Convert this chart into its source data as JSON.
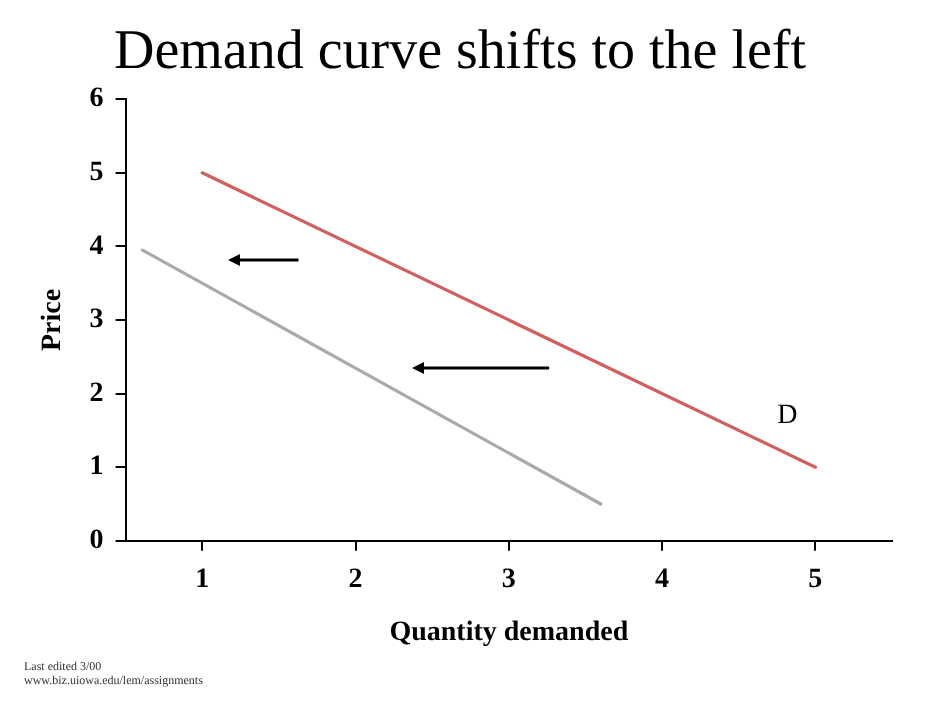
{
  "chart_data": {
    "type": "line",
    "title": "Demand curve shifts to the left",
    "xlabel": "Quantity demanded",
    "ylabel": "Price",
    "xlim": [
      0.5,
      5.5
    ],
    "xticks": [
      1,
      2,
      3,
      4,
      5
    ],
    "ylim": [
      0,
      6
    ],
    "yticks": [
      0,
      1,
      2,
      3,
      4,
      5,
      6
    ],
    "series": [
      {
        "name": "D",
        "color": "#d06060",
        "x": [
          1,
          5
        ],
        "values": [
          5,
          1
        ]
      },
      {
        "color": "#aaaaaa",
        "x": [
          0.61,
          3.6
        ],
        "values": [
          3.95,
          0.5
        ]
      }
    ],
    "annotations": [
      "Last edited 3/00",
      "www.biz.uiowa.edu/lem/assignments"
    ],
    "grid": false,
    "legend": false,
    "marker": "none",
    "line_style": "solid"
  }
}
